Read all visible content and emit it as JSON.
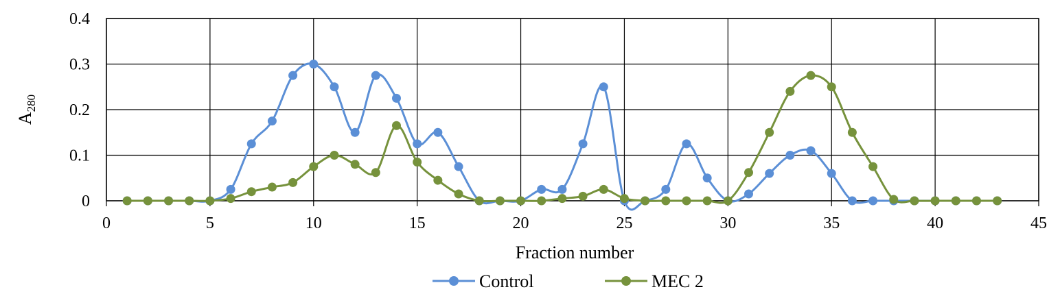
{
  "chart_data": {
    "type": "line",
    "smooth": true,
    "markers": "circle",
    "xlabel": "Fraction number",
    "ylabel_main": "A",
    "ylabel_sub": "280",
    "xlim": [
      0,
      45
    ],
    "ylim": [
      0,
      0.4
    ],
    "x_ticks": [
      0,
      5,
      10,
      15,
      20,
      25,
      30,
      35,
      40,
      45
    ],
    "y_ticks": [
      0,
      0.1,
      0.2,
      0.3,
      0.4
    ],
    "x_tick_labels": [
      "0",
      "5",
      "10",
      "15",
      "20",
      "25",
      "30",
      "35",
      "40",
      "45"
    ],
    "y_tick_labels": [
      "0",
      "0.1",
      "0.2",
      "0.3",
      "0.4"
    ],
    "grid": true,
    "legend_position": "bottom",
    "series": [
      {
        "name": "Control",
        "color": "#5B8FD6",
        "x": [
          1,
          2,
          3,
          4,
          5,
          6,
          7,
          8,
          9,
          10,
          11,
          12,
          13,
          14,
          15,
          16,
          17,
          18,
          19,
          20,
          21,
          22,
          23,
          24,
          25,
          26,
          27,
          28,
          29,
          30,
          31,
          32,
          33,
          34,
          35,
          36,
          37,
          38,
          39,
          40,
          41,
          42,
          43
        ],
        "values": [
          0,
          0,
          0,
          0,
          0,
          0.025,
          0.125,
          0.175,
          0.275,
          0.3,
          0.25,
          0.15,
          0.275,
          0.225,
          0.125,
          0.15,
          0.075,
          0,
          0,
          0,
          0.025,
          0.025,
          0.125,
          0.25,
          0,
          0,
          0.025,
          0.125,
          0.05,
          0,
          0.015,
          0.06,
          0.1,
          0.11,
          0.06,
          0,
          0,
          0,
          0,
          0,
          0,
          0,
          0
        ]
      },
      {
        "name": "MEC 2",
        "color": "#76923C",
        "x": [
          1,
          2,
          3,
          4,
          5,
          6,
          7,
          8,
          9,
          10,
          11,
          12,
          13,
          14,
          15,
          16,
          17,
          18,
          19,
          20,
          21,
          22,
          23,
          24,
          25,
          26,
          27,
          28,
          29,
          30,
          31,
          32,
          33,
          34,
          35,
          36,
          37,
          38,
          39,
          40,
          41,
          42,
          43
        ],
        "values": [
          0,
          0,
          0,
          0,
          0,
          0.005,
          0.02,
          0.03,
          0.04,
          0.075,
          0.1,
          0.08,
          0.062,
          0.165,
          0.085,
          0.045,
          0.015,
          0,
          0,
          0,
          0,
          0.005,
          0.01,
          0.025,
          0.005,
          0,
          0,
          0,
          0,
          0,
          0.062,
          0.15,
          0.24,
          0.275,
          0.25,
          0.15,
          0.075,
          0.003,
          0,
          0,
          0,
          0,
          0
        ]
      }
    ]
  }
}
